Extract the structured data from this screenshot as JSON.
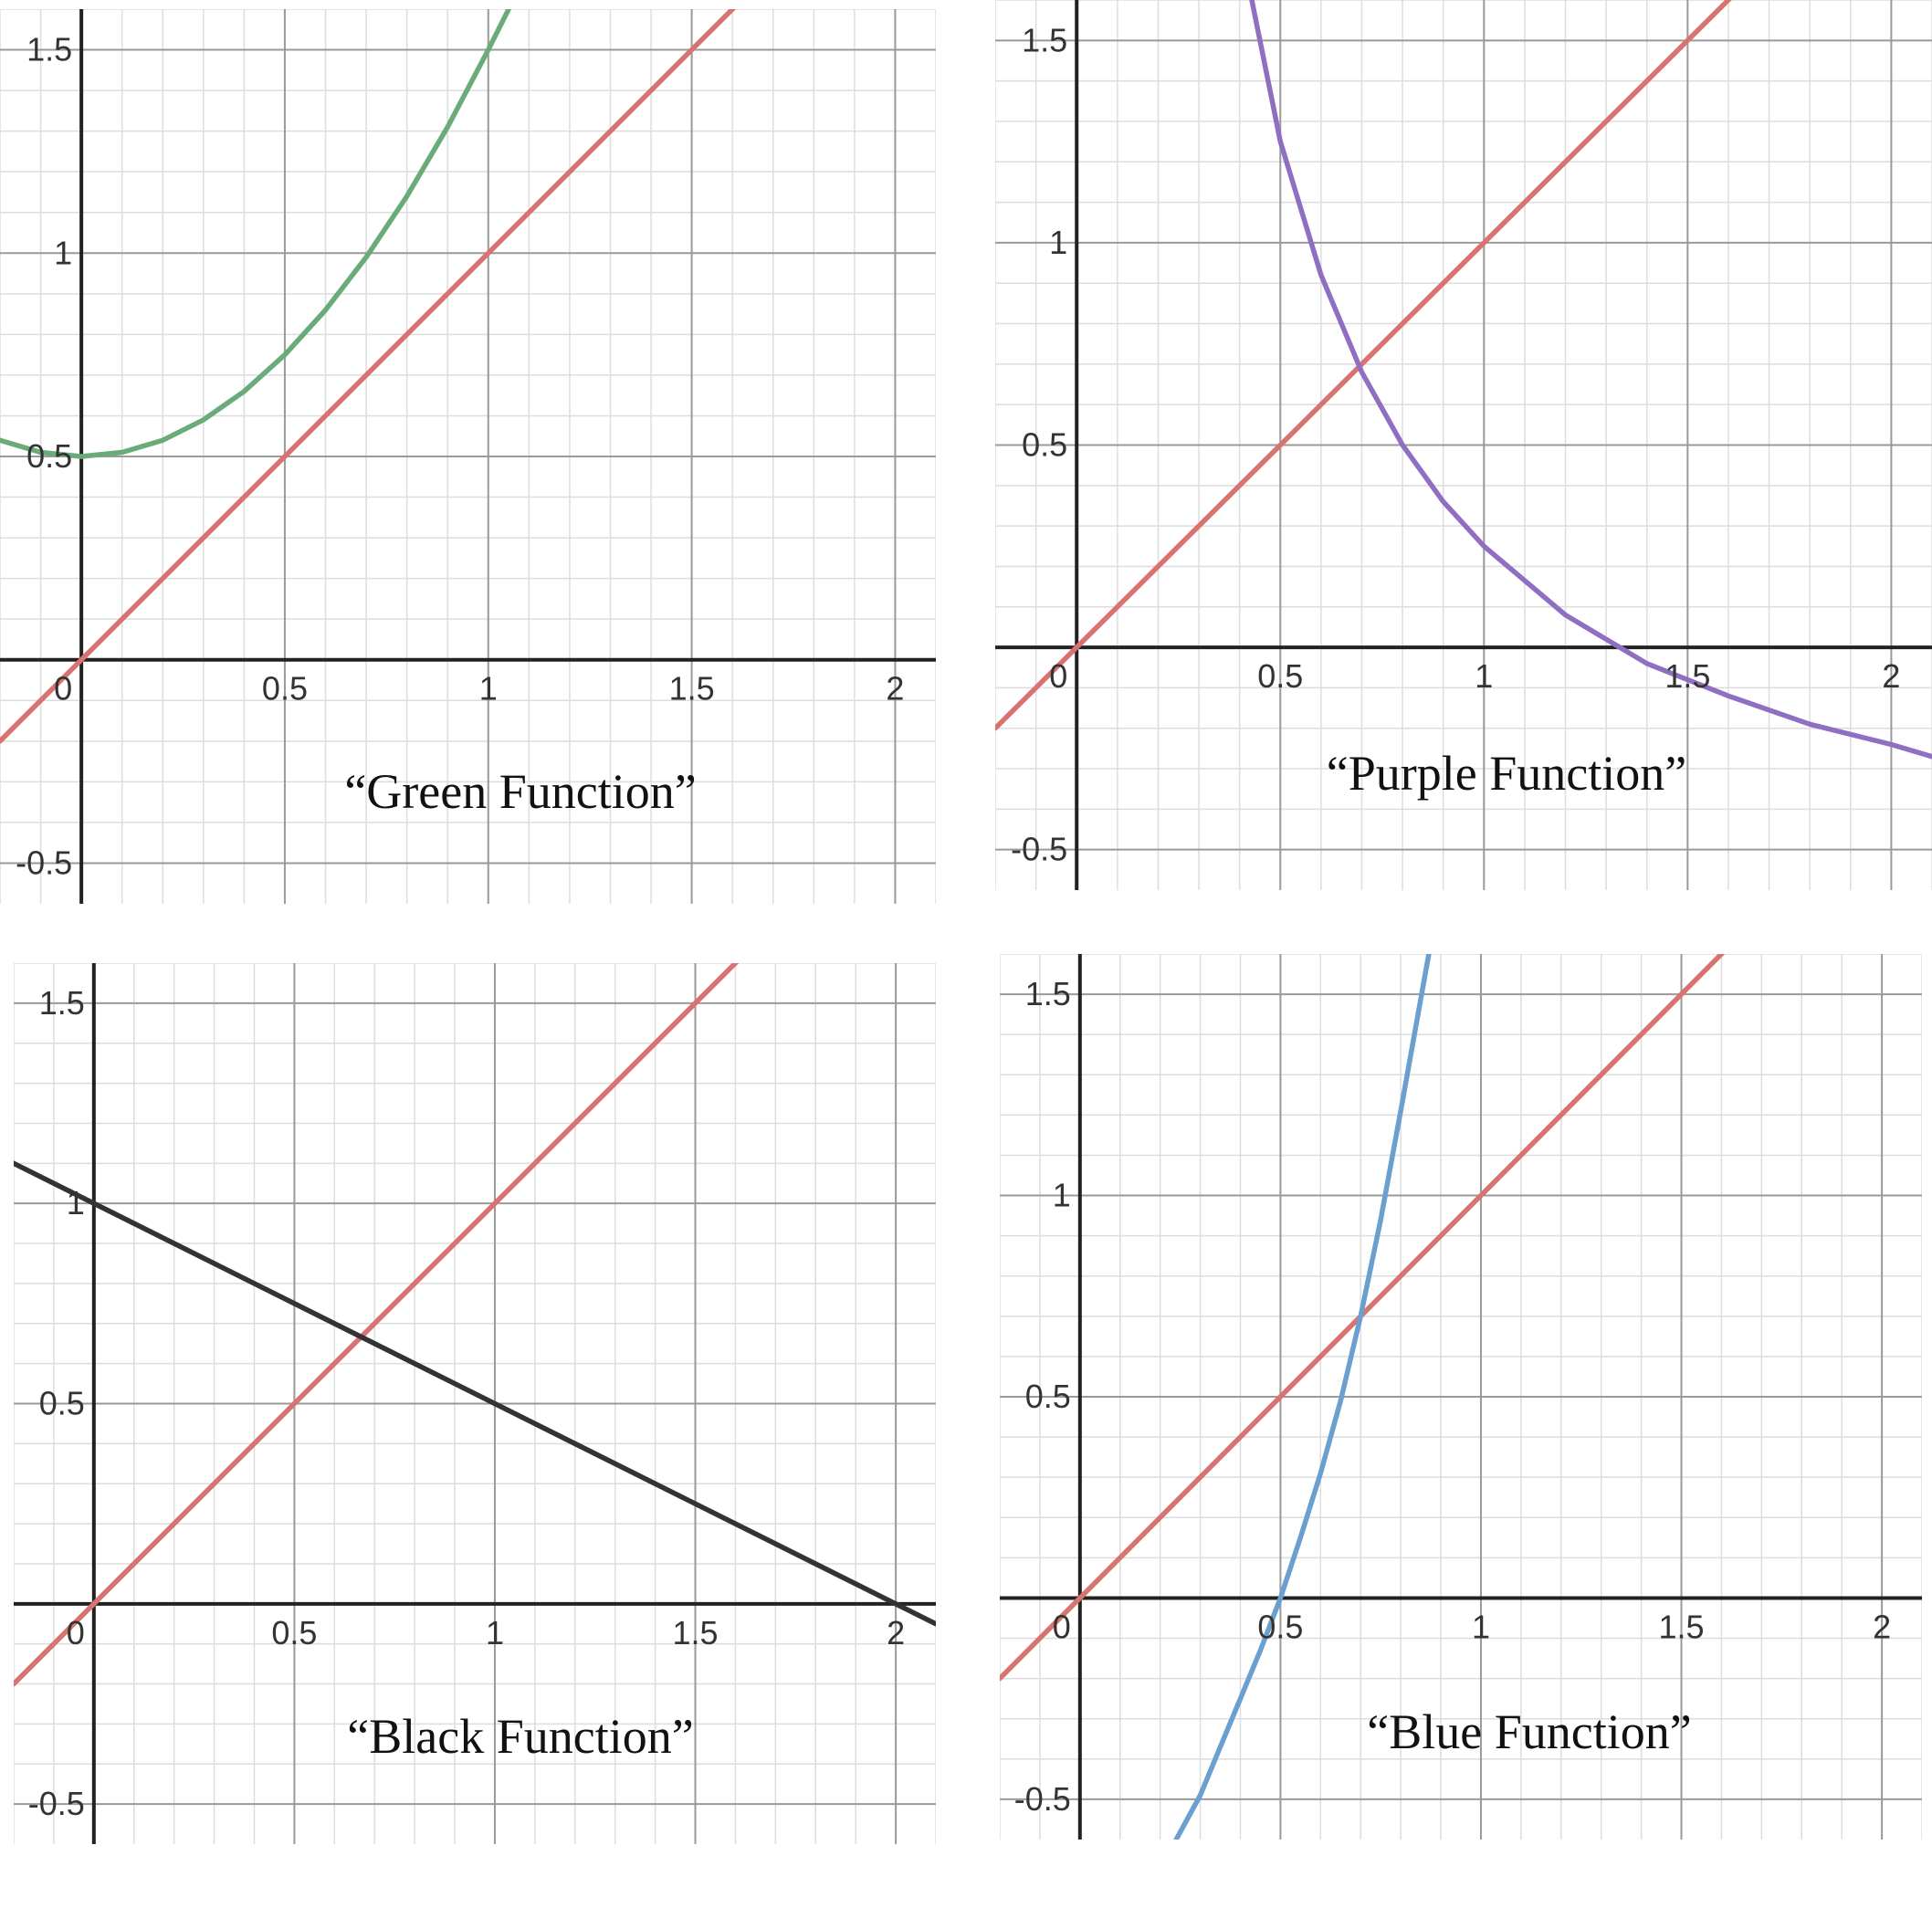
{
  "colors": {
    "identity_line": "#d9736f",
    "green": "#6aab7a",
    "purple": "#8f6fc2",
    "black": "#333333",
    "blue": "#6a9fd0",
    "grid_major": "#9a9a9a",
    "grid_minor": "#dddddd",
    "axis": "#222222"
  },
  "chart_data": [
    {
      "type": "line",
      "function_label": "“Green Function”",
      "xlim": [
        -0.2,
        2.1
      ],
      "ylim": [
        -0.6,
        1.6
      ],
      "x_ticks": [
        0,
        0.5,
        1,
        1.5,
        2
      ],
      "y_ticks": [
        -0.5,
        0.5,
        1,
        1.5
      ],
      "x_tick_labels": [
        "0",
        "0.5",
        "1",
        "1.5",
        "2"
      ],
      "y_tick_labels": [
        "-0.5",
        "0.5",
        "1",
        "1.5"
      ],
      "grid": true,
      "series": [
        {
          "color_key": "identity_line",
          "x": [
            -0.2,
            2.1
          ],
          "y": [
            -0.2,
            2.1
          ]
        },
        {
          "color_key": "green",
          "x": [
            -0.2,
            -0.1,
            0,
            0.1,
            0.2,
            0.3,
            0.4,
            0.5,
            0.6,
            0.7,
            0.8,
            0.9,
            1.0,
            1.05
          ],
          "y": [
            0.54,
            0.51,
            0.5,
            0.51,
            0.54,
            0.59,
            0.66,
            0.75,
            0.86,
            0.99,
            1.14,
            1.31,
            1.5,
            1.6
          ]
        }
      ]
    },
    {
      "type": "line",
      "function_label": "“Purple Function”",
      "xlim": [
        -0.2,
        2.1
      ],
      "ylim": [
        -0.6,
        1.6
      ],
      "x_ticks": [
        0,
        0.5,
        1,
        1.5,
        2
      ],
      "y_ticks": [
        -0.5,
        0.5,
        1,
        1.5
      ],
      "x_tick_labels": [
        "0",
        "0.5",
        "1",
        "1.5",
        "2"
      ],
      "y_tick_labels": [
        "-0.5",
        "0.5",
        "1",
        "1.5"
      ],
      "grid": true,
      "series": [
        {
          "color_key": "identity_line",
          "x": [
            -0.2,
            2.1
          ],
          "y": [
            -0.2,
            2.1
          ]
        },
        {
          "color_key": "purple",
          "x": [
            0.43,
            0.5,
            0.6,
            0.7,
            0.8,
            0.9,
            1.0,
            1.2,
            1.4,
            1.6,
            1.8,
            2.0,
            2.1
          ],
          "y": [
            1.6,
            1.25,
            0.92,
            0.68,
            0.5,
            0.36,
            0.25,
            0.08,
            -0.04,
            -0.12,
            -0.19,
            -0.24,
            -0.27
          ]
        }
      ]
    },
    {
      "type": "line",
      "function_label": "“Black Function”",
      "xlim": [
        -0.2,
        2.1
      ],
      "ylim": [
        -0.6,
        1.6
      ],
      "x_ticks": [
        0,
        0.5,
        1,
        1.5,
        2
      ],
      "y_ticks": [
        -0.5,
        0.5,
        1,
        1.5
      ],
      "x_tick_labels": [
        "0",
        "0.5",
        "1",
        "1.5",
        "2"
      ],
      "y_tick_labels": [
        "-0.5",
        "0.5",
        "1",
        "1.5"
      ],
      "grid": true,
      "series": [
        {
          "color_key": "identity_line",
          "x": [
            -0.2,
            2.1
          ],
          "y": [
            -0.2,
            2.1
          ]
        },
        {
          "color_key": "black",
          "x": [
            -0.2,
            2.1
          ],
          "y": [
            1.1,
            -0.05
          ]
        }
      ]
    },
    {
      "type": "line",
      "function_label": "“Blue Function”",
      "xlim": [
        -0.2,
        2.1
      ],
      "ylim": [
        -0.6,
        1.6
      ],
      "x_ticks": [
        0,
        0.5,
        1,
        1.5,
        2
      ],
      "y_ticks": [
        -0.5,
        0.5,
        1,
        1.5
      ],
      "x_tick_labels": [
        "0",
        "0.5",
        "1",
        "1.5",
        "2"
      ],
      "y_tick_labels": [
        "-0.5",
        "0.5",
        "1",
        "1.5"
      ],
      "grid": true,
      "series": [
        {
          "color_key": "identity_line",
          "x": [
            -0.2,
            2.1
          ],
          "y": [
            -0.2,
            2.1
          ]
        },
        {
          "color_key": "blue",
          "x": [
            0.24,
            0.3,
            0.35,
            0.4,
            0.45,
            0.5,
            0.55,
            0.6,
            0.65,
            0.7,
            0.75,
            0.8,
            0.87
          ],
          "y": [
            -0.6,
            -0.49,
            -0.37,
            -0.25,
            -0.13,
            0.0,
            0.15,
            0.31,
            0.49,
            0.7,
            0.94,
            1.21,
            1.6
          ]
        }
      ]
    }
  ]
}
